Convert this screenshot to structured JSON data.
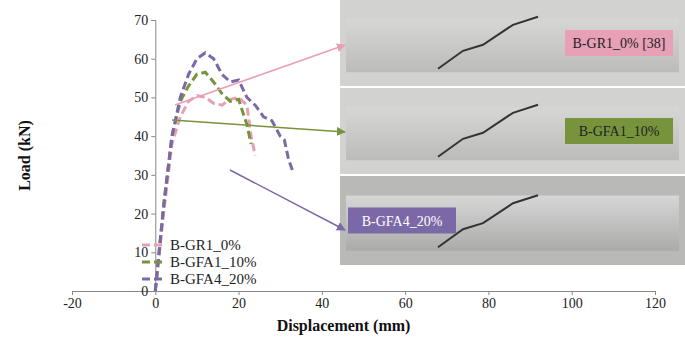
{
  "chart_data": {
    "type": "line",
    "x_label": "Displacement (mm)",
    "y_label": "Load (kN)",
    "xlim": [
      -20,
      120
    ],
    "xticks": [
      -20,
      0,
      20,
      40,
      60,
      80,
      100,
      120
    ],
    "ylim": [
      0,
      70
    ],
    "yticks": [
      0,
      10,
      20,
      30,
      40,
      50,
      60,
      70
    ],
    "grid": false,
    "legend": "lower left",
    "series": [
      {
        "name": "B-GR1_0%",
        "color": "#e8a0b6",
        "line_style": "dashed",
        "x": [
          0,
          2,
          4,
          6,
          8,
          10,
          12,
          14,
          16,
          18,
          20,
          22,
          23,
          24
        ],
        "values": [
          0,
          20,
          38,
          45,
          49,
          50.5,
          50,
          48.5,
          48,
          49.5,
          50,
          48,
          40,
          35
        ]
      },
      {
        "name": "B-GFA1_10%",
        "color": "#77933c",
        "line_style": "dashed",
        "x": [
          0,
          2,
          4,
          6,
          8,
          10,
          12,
          14,
          16,
          18,
          20,
          22,
          23
        ],
        "values": [
          0,
          22,
          40,
          49,
          53,
          56,
          56.5,
          54,
          51,
          49,
          49.5,
          43,
          38
        ]
      },
      {
        "name": "B-GFA4_20%",
        "color": "#7b68a6",
        "line_style": "dashed",
        "x": [
          0,
          2,
          4,
          6,
          8,
          10,
          12,
          14,
          16,
          18,
          20,
          22,
          24,
          26,
          28,
          30,
          31,
          32,
          33
        ],
        "values": [
          0,
          22,
          40,
          50,
          56,
          60,
          61.5,
          60,
          56,
          54,
          54.5,
          50,
          48,
          45,
          44,
          40,
          39,
          34,
          31
        ]
      }
    ],
    "annotations": [
      "B-GR1_0% [38]",
      "B-GFA1_10%",
      "B-GFA4_20%"
    ]
  }
}
